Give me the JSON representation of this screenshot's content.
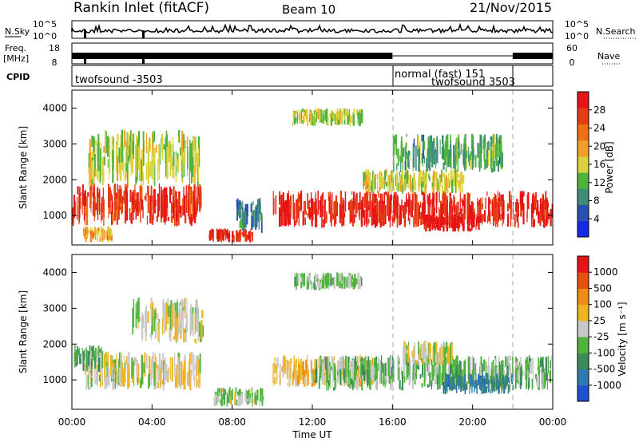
{
  "header": {
    "station": "Rankin Inlet (fitACF)",
    "beam": "Beam 10",
    "date": "21/Nov/2015"
  },
  "top_panels": {
    "nsky": {
      "label": "N.Sky",
      "tick_top": "10^5",
      "tick_bottom": "10^0"
    },
    "nsearch": {
      "label": "N.Search",
      "tick_top": "10^5",
      "tick_bottom": "10^0"
    },
    "freq": {
      "label_line1": "Freq.",
      "label_line2": "[MHz]",
      "tick_top": "18",
      "tick_bottom": "8"
    },
    "nave": {
      "label": "Nave",
      "tick_top": "60",
      "tick_bottom": "0"
    },
    "cpid": {
      "label": "CPID",
      "segments": [
        {
          "text": "twofsound -3503",
          "start_hour": 0,
          "end_hour": 16
        },
        {
          "text": "normal (fast) 151",
          "start_hour": 16,
          "end_hour": 22
        },
        {
          "text": "twofsound 3503",
          "start_hour": 16,
          "end_hour": 22
        }
      ]
    }
  },
  "colors": {
    "power_scale": [
      "#1428e6",
      "#2850b4",
      "#3c8c78",
      "#50b43c",
      "#dcd23c",
      "#f0a028",
      "#f06e14",
      "#e63c14",
      "#e61414"
    ],
    "velocity_scale": [
      "#1e50d2",
      "#2c7ab0",
      "#3c8c5a",
      "#50b43c",
      "#c8c8c8",
      "#f0b41e",
      "#f08c14",
      "#e6500f",
      "#e61414"
    ]
  },
  "chart_data": [
    {
      "type": "heatmap",
      "panel": "power",
      "ylabel": "Slant Range [km]",
      "xlabel": "Time UT",
      "x_ticks": [
        "00:00",
        "04:00",
        "08:00",
        "12:00",
        "16:00",
        "20:00",
        "00:00"
      ],
      "xlim_hours": [
        0,
        24
      ],
      "y_ticks": [
        "1000",
        "2000",
        "3000",
        "4000"
      ],
      "ylim": [
        180,
        4500
      ],
      "colorbar": {
        "label": "Power [dB]",
        "ticks": [
          "4",
          "8",
          "12",
          "16",
          "20",
          "24",
          "28"
        ],
        "range": [
          0,
          30
        ]
      },
      "mode_change_hours": [
        16,
        22
      ],
      "echo_regions": [
        {
          "t0": 0,
          "t1": 6.5,
          "r0": 700,
          "r1": 1900,
          "value": 26
        },
        {
          "t0": 0.8,
          "t1": 6.3,
          "r0": 1800,
          "r1": 3400,
          "value": 14
        },
        {
          "t0": 0.5,
          "t1": 2,
          "r0": 250,
          "r1": 700,
          "value": 18
        },
        {
          "t0": 6.8,
          "t1": 9,
          "r0": 250,
          "r1": 650,
          "value": 27
        },
        {
          "t0": 10,
          "t1": 24,
          "r0": 650,
          "r1": 1700,
          "value": 27
        },
        {
          "t0": 17.5,
          "t1": 20.5,
          "r0": 550,
          "r1": 1100,
          "value": 29
        },
        {
          "t0": 14.5,
          "t1": 19.5,
          "r0": 1600,
          "r1": 2300,
          "value": 15
        },
        {
          "t0": 11,
          "t1": 14.5,
          "r0": 3500,
          "r1": 4000,
          "value": 14
        },
        {
          "t0": 16,
          "t1": 21.5,
          "r0": 2200,
          "r1": 3300,
          "value": 10
        },
        {
          "t0": 8.2,
          "t1": 9.5,
          "r0": 500,
          "r1": 1500,
          "value": 8
        }
      ]
    },
    {
      "type": "heatmap",
      "panel": "velocity",
      "ylabel": "Slant Range [km]",
      "xlabel": "Time UT",
      "x_ticks": [
        "00:00",
        "04:00",
        "08:00",
        "12:00",
        "16:00",
        "20:00",
        "00:00"
      ],
      "xlim_hours": [
        0,
        24
      ],
      "y_ticks": [
        "1000",
        "2000",
        "3000",
        "4000"
      ],
      "ylim": [
        180,
        4500
      ],
      "colorbar": {
        "label": "Velocity [m s⁻¹]",
        "ticks": [
          "-1000",
          "-500",
          "-100",
          "-25",
          "25",
          "100",
          "500",
          "1000"
        ],
        "range": [
          -1500,
          1500
        ]
      },
      "mode_change_hours": [
        16,
        22
      ],
      "echo_regions": [
        {
          "t0": 0.5,
          "t1": 6.5,
          "r0": 700,
          "r1": 1800,
          "value": 80
        },
        {
          "t0": 0,
          "t1": 1.5,
          "r0": 1200,
          "r1": 2000,
          "value": -400
        },
        {
          "t0": 3,
          "t1": 6.5,
          "r0": 2000,
          "r1": 3300,
          "value": 0
        },
        {
          "t0": 7,
          "t1": 9.5,
          "r0": 250,
          "r1": 800,
          "value": -150
        },
        {
          "t0": 10,
          "t1": 15,
          "r0": 800,
          "r1": 1700,
          "value": 300
        },
        {
          "t0": 12,
          "t1": 24,
          "r0": 700,
          "r1": 1700,
          "value": -300
        },
        {
          "t0": 16.5,
          "t1": 19,
          "r0": 1400,
          "r1": 2100,
          "value": 0
        },
        {
          "t0": 18.5,
          "t1": 22,
          "r0": 600,
          "r1": 1200,
          "value": -900
        },
        {
          "t0": 11,
          "t1": 14.5,
          "r0": 3500,
          "r1": 4000,
          "value": -200
        }
      ]
    }
  ]
}
